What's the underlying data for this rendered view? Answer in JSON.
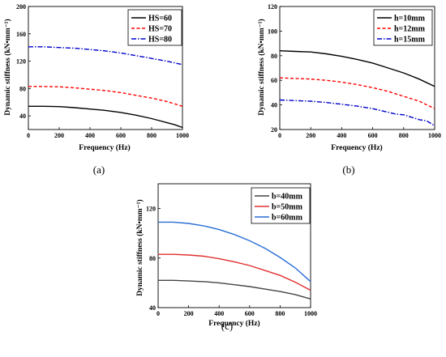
{
  "chart_data": [
    {
      "type": "line",
      "panel_label": "(a)",
      "xlabel": "Frequency (Hz)",
      "ylabel": "Dynamic stiffness (kN•mm⁻¹)",
      "xlim": [
        0,
        1000
      ],
      "ylim": [
        20,
        200
      ],
      "xticks": [
        0,
        200,
        400,
        600,
        800,
        1000
      ],
      "yticks": [
        40,
        80,
        120,
        160,
        200
      ],
      "legend_position": "top-right",
      "grid": false,
      "series": [
        {
          "name": "HS=60",
          "color": "#000000",
          "dash": "solid",
          "x": [
            0,
            100,
            200,
            300,
            400,
            500,
            600,
            700,
            800,
            850,
            900,
            950,
            1000
          ],
          "y": [
            54,
            54,
            53.5,
            52,
            50,
            48,
            45,
            41,
            36,
            33,
            30,
            27,
            23
          ]
        },
        {
          "name": "HS=70",
          "color": "#ff0000",
          "dash": "dash",
          "x": [
            0,
            100,
            200,
            300,
            400,
            500,
            600,
            700,
            800,
            900,
            1000
          ],
          "y": [
            83,
            83,
            82.5,
            81,
            79,
            77,
            74,
            70,
            66,
            61,
            54
          ]
        },
        {
          "name": "HS=80",
          "color": "#0000cc",
          "dash": "dashdot",
          "x": [
            0,
            100,
            200,
            300,
            400,
            500,
            600,
            700,
            800,
            900,
            1000
          ],
          "y": [
            141,
            141,
            140,
            139,
            137,
            135,
            132,
            128,
            124,
            120,
            115
          ]
        }
      ]
    },
    {
      "type": "line",
      "panel_label": "(b)",
      "xlabel": "Frequency (Hz)",
      "ylabel": "Dynamic stiffness (kN•mm⁻¹)",
      "xlim": [
        0,
        1000
      ],
      "ylim": [
        20,
        120
      ],
      "xticks": [
        0,
        200,
        400,
        600,
        800,
        1000
      ],
      "yticks": [
        20,
        40,
        60,
        80,
        100,
        120
      ],
      "legend_position": "top-right",
      "grid": false,
      "series": [
        {
          "name": "h=10mm",
          "color": "#000000",
          "dash": "solid",
          "x": [
            0,
            100,
            200,
            300,
            400,
            500,
            600,
            700,
            800,
            900,
            1000
          ],
          "y": [
            84,
            83.5,
            83,
            81.5,
            79.5,
            77,
            74,
            70,
            66,
            61,
            55
          ]
        },
        {
          "name": "h=12mm",
          "color": "#ff0000",
          "dash": "dash",
          "x": [
            0,
            100,
            200,
            300,
            400,
            500,
            600,
            700,
            800,
            850,
            900,
            1000
          ],
          "y": [
            62,
            61.5,
            61,
            60,
            58.5,
            56.5,
            54,
            51,
            47,
            45,
            43,
            37
          ]
        },
        {
          "name": "h=15mm",
          "color": "#0000cc",
          "dash": "dashdot",
          "x": [
            0,
            100,
            200,
            300,
            400,
            500,
            600,
            700,
            750,
            800,
            850,
            900,
            950,
            1000
          ],
          "y": [
            44,
            43.5,
            43,
            42,
            40.5,
            39,
            37,
            34,
            32.5,
            32,
            30,
            28,
            27,
            23
          ]
        }
      ]
    },
    {
      "type": "line",
      "panel_label": "(c)",
      "xlabel": "Frequency (Hz)",
      "ylabel": "Dynamic stiffness (kN•mm⁻¹)",
      "xlim": [
        0,
        1000
      ],
      "ylim": [
        40,
        140
      ],
      "xticks": [
        0,
        200,
        400,
        600,
        800,
        1000
      ],
      "yticks": [
        40,
        80,
        120
      ],
      "legend_position": "top-right",
      "grid": false,
      "series": [
        {
          "name": "b=40mm",
          "color": "#444444",
          "dash": "solid",
          "x": [
            0,
            100,
            200,
            300,
            400,
            500,
            600,
            700,
            800,
            900,
            1000
          ],
          "y": [
            62,
            62,
            61.5,
            61,
            60,
            58.5,
            57,
            55,
            53,
            50.5,
            47
          ]
        },
        {
          "name": "b=50mm",
          "color": "#e03030",
          "dash": "solid",
          "x": [
            0,
            100,
            200,
            300,
            400,
            500,
            600,
            700,
            800,
            900,
            1000
          ],
          "y": [
            83,
            83,
            82.5,
            81.5,
            79.5,
            77,
            74,
            70,
            66,
            60.5,
            54
          ]
        },
        {
          "name": "b=60mm",
          "color": "#2a6fd6",
          "dash": "solid",
          "x": [
            0,
            100,
            200,
            300,
            400,
            500,
            600,
            700,
            800,
            900,
            1000
          ],
          "y": [
            109,
            109,
            108,
            106,
            103,
            99,
            94,
            88,
            80.5,
            72,
            61
          ]
        }
      ]
    }
  ]
}
